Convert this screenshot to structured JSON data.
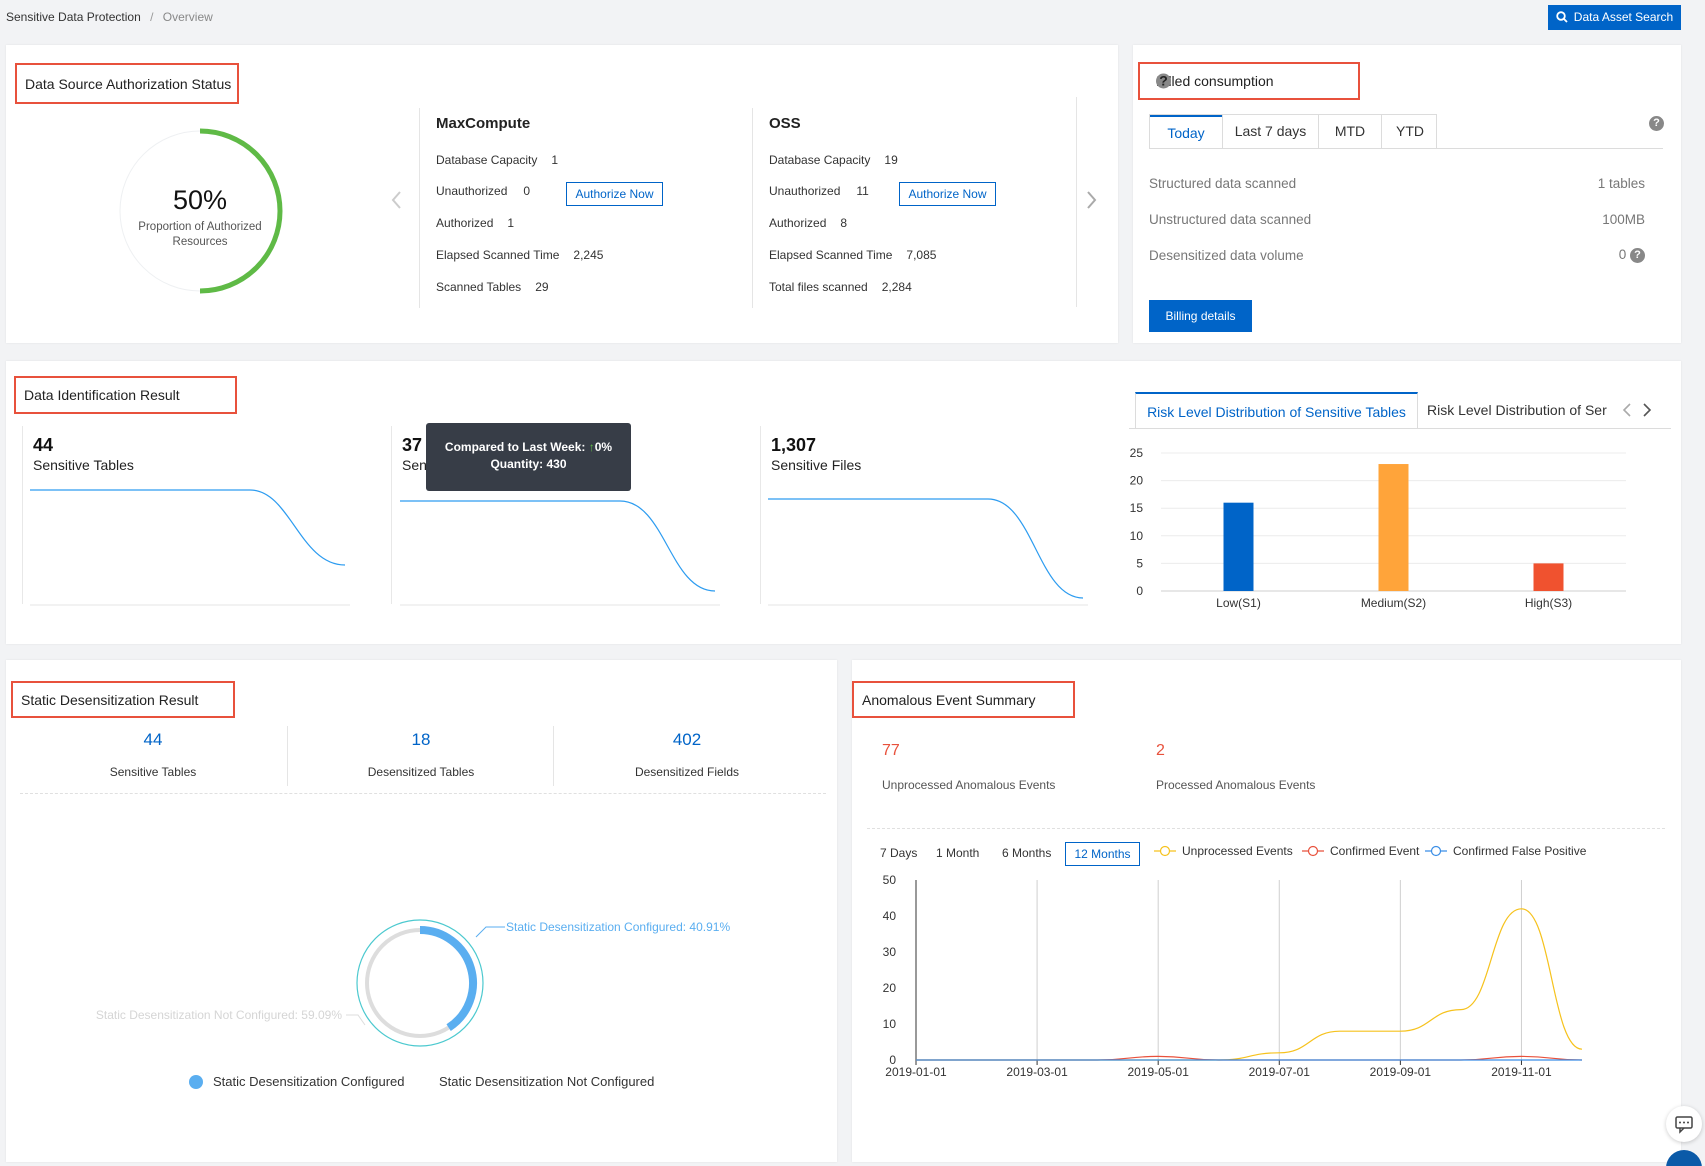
{
  "breadcrumb": {
    "root": "Sensitive Data Protection",
    "sep": "/",
    "current": "Overview"
  },
  "header": {
    "search_button": "Data Asset Search"
  },
  "auth_status": {
    "title": "Data Source Authorization Status",
    "gauge": {
      "percent_label": "50%",
      "percent": 0.5,
      "caption": "Proportion of Authorized Resources",
      "color": "#5fba46"
    },
    "sources": [
      {
        "name": "MaxCompute",
        "rows": [
          {
            "label": "Database Capacity",
            "value": "1"
          },
          {
            "label": "Unauthorized",
            "value": "0"
          },
          {
            "label": "Authorized",
            "value": "1"
          },
          {
            "label": "Elapsed Scanned Time",
            "value": "2,245"
          },
          {
            "label": "Scanned Tables",
            "value": "29"
          }
        ],
        "authorize_label": "Authorize Now"
      },
      {
        "name": "OSS",
        "rows": [
          {
            "label": "Database Capacity",
            "value": "19"
          },
          {
            "label": "Unauthorized",
            "value": "11"
          },
          {
            "label": "Authorized",
            "value": "8"
          },
          {
            "label": "Elapsed Scanned Time",
            "value": "7,085"
          },
          {
            "label": "Total files scanned",
            "value": "2,284"
          }
        ],
        "authorize_label": "Authorize Now"
      }
    ]
  },
  "billing": {
    "title": "Billed consumption",
    "tabs": [
      "Today",
      "Last 7 days",
      "MTD",
      "YTD"
    ],
    "active_tab": "Today",
    "rows": [
      {
        "label": "Structured data scanned",
        "value": "1 tables"
      },
      {
        "label": "Unstructured data scanned",
        "value": "100MB"
      },
      {
        "label": "Desensitized data volume",
        "value": "0"
      }
    ],
    "details_button": "Billing details",
    "help_mark": "?"
  },
  "identification": {
    "title": "Data Identification Result",
    "stats": [
      {
        "value": "44",
        "label": "Sensitive Tables"
      },
      {
        "value": "37",
        "label": "Sen"
      },
      {
        "value": "1,307",
        "label": "Sensitive Files"
      }
    ],
    "tooltip": {
      "compare_label": "Compared to Last Week:",
      "compare_value": "0%",
      "quantity_label": "Quantity:",
      "quantity_value": "430"
    },
    "chart_tabs": [
      "Risk Level Distribution of Sensitive Tables",
      "Risk Level Distribution of Ser"
    ]
  },
  "chart_data": [
    {
      "type": "bar",
      "categories": [
        "Low(S1)",
        "Medium(S2)",
        "High(S3)"
      ],
      "values": [
        16,
        23,
        5
      ],
      "colors": [
        "#0064c8",
        "#ffa43a",
        "#f0522f"
      ],
      "yticks": [
        "0",
        "5",
        "10",
        "15",
        "20",
        "25"
      ],
      "ylim": [
        0,
        25
      ]
    },
    {
      "type": "line",
      "x": [
        "2019-01-01",
        "2019-02-01",
        "2019-03-01",
        "2019-04-01",
        "2019-05-01",
        "2019-06-01",
        "2019-07-01",
        "2019-08-01",
        "2019-09-01",
        "2019-10-01",
        "2019-11-01",
        "2019-12-01"
      ],
      "xticks": [
        "2019-01-01",
        "2019-03-01",
        "2019-05-01",
        "2019-07-01",
        "2019-09-01",
        "2019-11-01"
      ],
      "yticks": [
        "0",
        "10",
        "20",
        "30",
        "40",
        "50"
      ],
      "ylim": [
        0,
        50
      ],
      "series": [
        {
          "name": "Unprocessed Events",
          "color": "#f6c21d",
          "values": [
            0,
            0,
            0,
            0,
            0,
            0,
            2,
            8,
            8,
            14,
            42,
            3
          ]
        },
        {
          "name": "Confirmed Event",
          "color": "#e8513c",
          "values": [
            0,
            0,
            0,
            0,
            1,
            0,
            0,
            0,
            0,
            0,
            1,
            0
          ]
        },
        {
          "name": "Confirmed False Positive",
          "color": "#3a8ee6",
          "values": [
            0,
            0,
            0,
            0,
            0,
            0,
            0,
            0,
            0,
            0,
            0,
            0
          ]
        }
      ]
    }
  ],
  "static_desens": {
    "title": "Static Desensitization Result",
    "stats": [
      {
        "value": "44",
        "label": "Sensitive Tables"
      },
      {
        "value": "18",
        "label": "Desensitized Tables"
      },
      {
        "value": "402",
        "label": "Desensitized Fields"
      }
    ],
    "donut": {
      "configured_label": "Static Desensitization Configured: 40.91%",
      "not_configured_label": "Static Desensitization Not Configured: 59.09%",
      "configured_fraction": 0.4091
    },
    "legend": [
      "Static Desensitization Configured",
      "Static Desensitization Not Configured"
    ]
  },
  "anomalous": {
    "title": "Anomalous Event Summary",
    "unprocessed": {
      "value": "77",
      "label": "Unprocessed Anomalous Events"
    },
    "processed": {
      "value": "2",
      "label": "Processed Anomalous Events"
    },
    "ranges": [
      "7 Days",
      "1 Month",
      "6 Months",
      "12 Months"
    ],
    "active_range": "12 Months"
  }
}
